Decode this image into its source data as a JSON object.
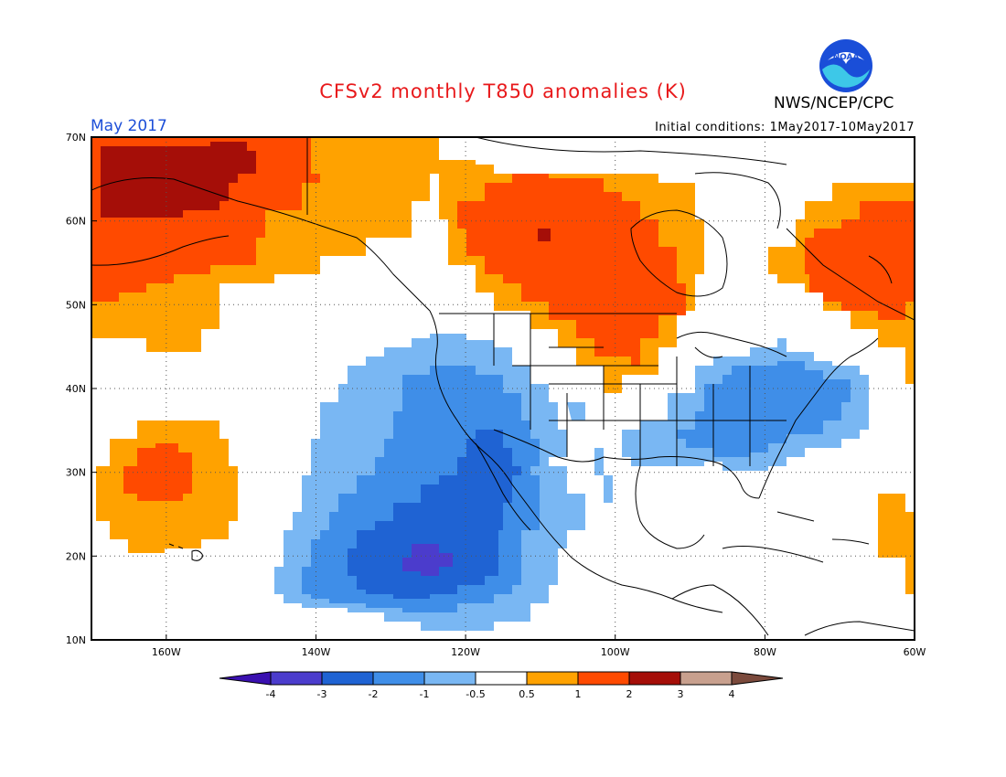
{
  "title": "CFSv2 monthly T850 anomalies (K)",
  "month": "May 2017",
  "agency": "NWS/NCEP/CPC",
  "logo_text": "NOAA",
  "initial_conditions": "Initial conditions: 1May2017-10May2017",
  "lat_labels": [
    "70N",
    "60N",
    "50N",
    "40N",
    "30N",
    "20N",
    "10N"
  ],
  "lon_labels": [
    "160W",
    "140W",
    "120W",
    "100W",
    "80W",
    "60W"
  ],
  "colorbar": {
    "ticks": [
      "-4",
      "-3",
      "-2",
      "-1",
      "-0.5",
      "0.5",
      "1",
      "2",
      "3",
      "4"
    ],
    "colors": [
      "#3a10b0",
      "#4b3ccc",
      "#1f63d3",
      "#3f8ee8",
      "#79b7f3",
      "#ffffff",
      "#ffa200",
      "#ff4a00",
      "#a50e08",
      "#c8a08e",
      "#7b4a3c"
    ]
  },
  "anomaly_palette": {
    "lt_-3": "#4b3ccc",
    "-3_-2": "#1f63d3",
    "-2_-1": "#3f8ee8",
    "-1_-0.5": "#79b7f3",
    "0.5_1": "#ffa200",
    "1_2": "#ff4a00",
    "2_3": "#a50e08"
  }
}
